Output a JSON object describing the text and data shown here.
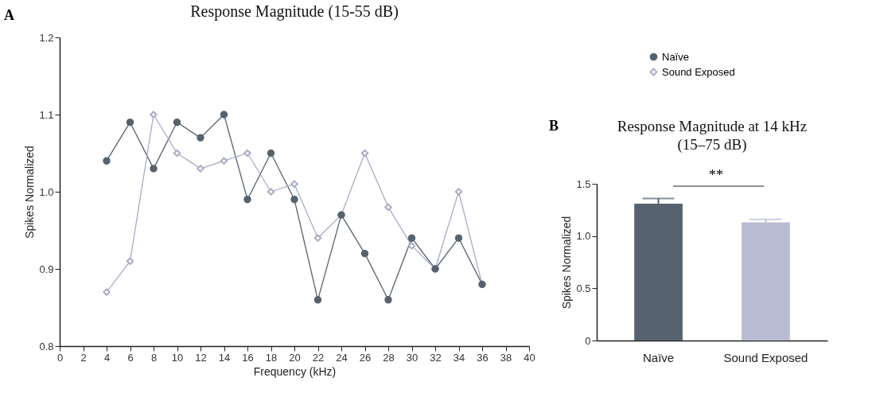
{
  "chart_data": [
    {
      "type": "line",
      "title": "Response Magnitude (15-55 dB)",
      "xlabel": "Frequency (kHz)",
      "ylabel": "Spikes Normalized",
      "annotations": [
        "A"
      ],
      "x": [
        4,
        6,
        8,
        10,
        12,
        14,
        16,
        18,
        20,
        22,
        24,
        26,
        28,
        30,
        32,
        34,
        36
      ],
      "series": [
        {
          "name": "Naïve",
          "color": "#56636e",
          "marker": "circle",
          "values": [
            1.04,
            1.09,
            1.03,
            1.09,
            1.07,
            1.1,
            0.99,
            1.05,
            0.99,
            0.86,
            0.97,
            0.92,
            0.86,
            0.94,
            0.9,
            0.94,
            0.88
          ]
        },
        {
          "name": "Sound Exposed",
          "color": "#a9abc6",
          "marker": "diamond",
          "values": [
            0.87,
            0.91,
            1.1,
            1.05,
            1.03,
            1.04,
            1.05,
            1.0,
            1.01,
            0.94,
            0.97,
            1.05,
            0.98,
            0.93,
            0.9,
            1.0,
            0.88
          ]
        }
      ],
      "xlim": [
        0,
        40
      ],
      "xticks": [
        0,
        2,
        4,
        6,
        8,
        10,
        12,
        14,
        16,
        18,
        20,
        22,
        24,
        26,
        28,
        30,
        32,
        34,
        36,
        38,
        40
      ],
      "ylim": [
        0.8,
        1.2
      ],
      "yticks": [
        0.8,
        0.9,
        {
          "value": 1,
          "label": "1.0"
        },
        1.1,
        1.2
      ],
      "grid": false,
      "legend": "right"
    },
    {
      "type": "bar",
      "title": "Response Magnitude at 14 kHz",
      "subtitle": "(15–75 dB)",
      "ylabel": "Spikes Normalized",
      "annotations": [
        "B",
        "**"
      ],
      "categories": [
        "Naïve",
        "Sound Exposed"
      ],
      "values": [
        1.31,
        1.13
      ],
      "colors": [
        "#56636e",
        "#b9bbd2"
      ],
      "errors": [
        [
          1.31,
          1.36
        ],
        [
          1.13,
          1.16
        ]
      ],
      "ylim": [
        0,
        1.5
      ],
      "yticks": [
        0,
        0.5,
        {
          "value": 1,
          "label": "1.0"
        },
        1.5
      ],
      "grid": false
    }
  ]
}
